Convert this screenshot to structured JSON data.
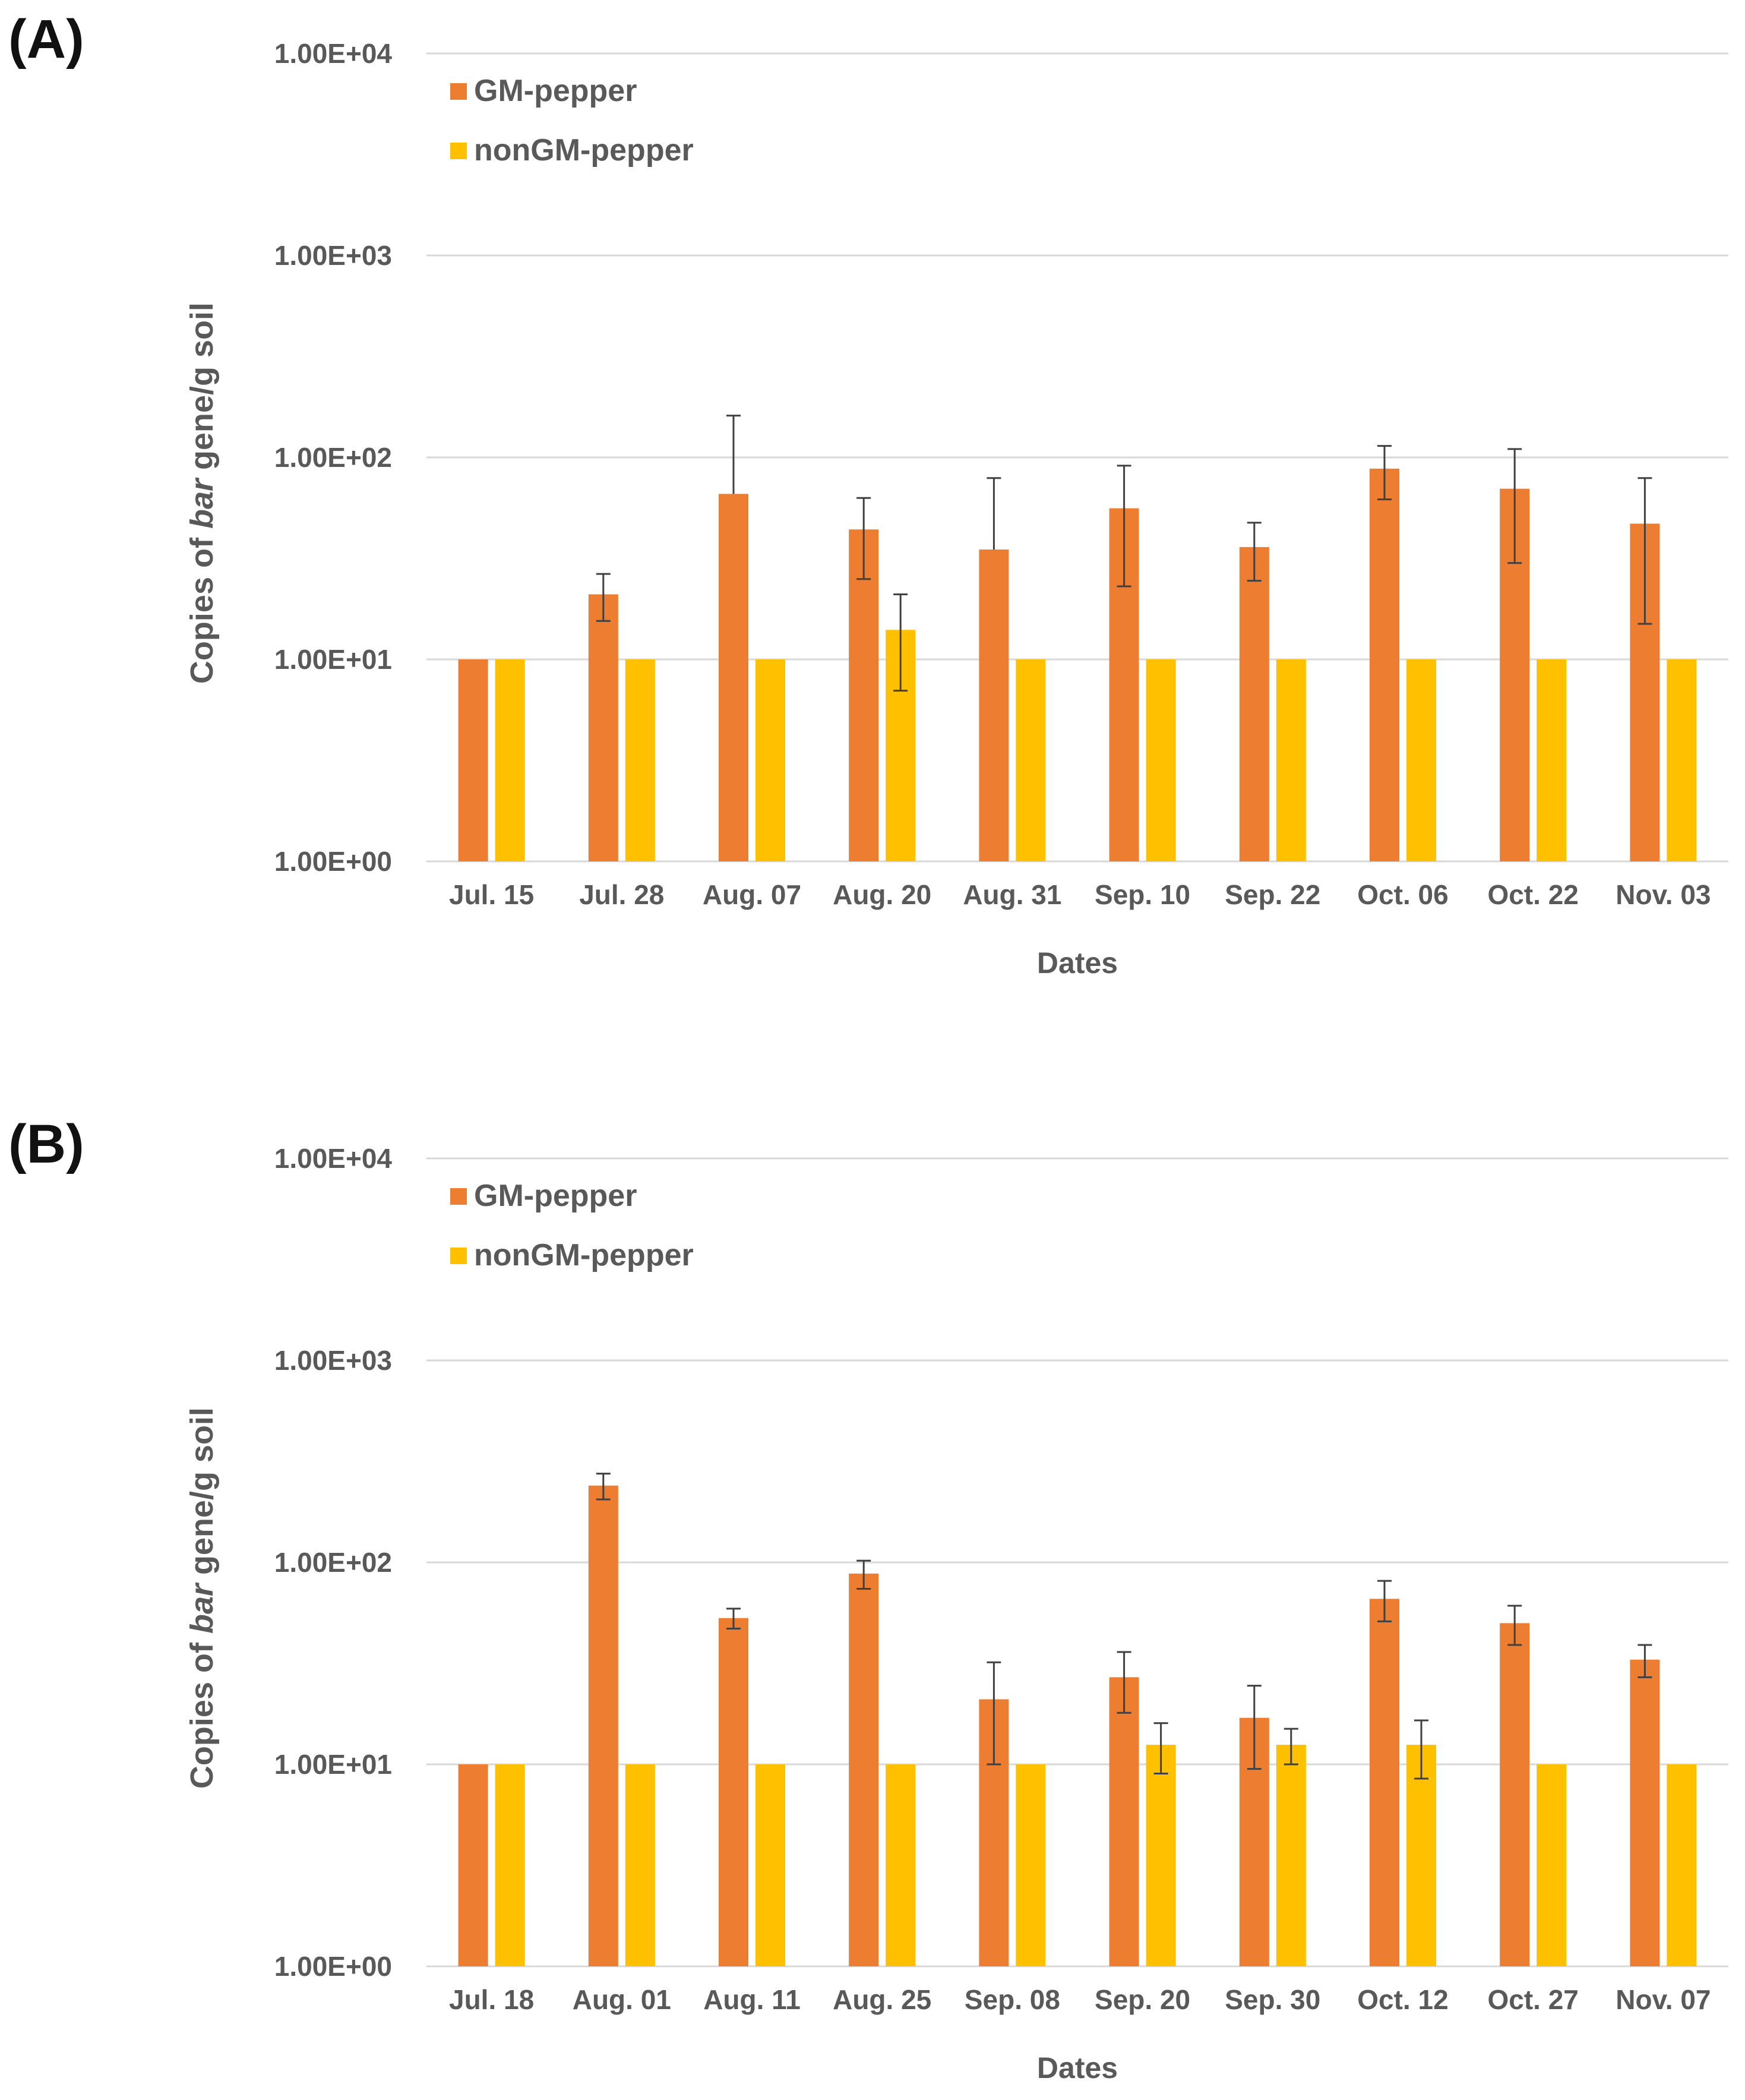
{
  "chart_data": [
    {
      "panel": "(A)",
      "type": "bar",
      "yscale": "log",
      "ylim": [
        1,
        10000
      ],
      "yticks": [
        "1.00E+00",
        "1.00E+01",
        "1.00E+02",
        "1.00E+03",
        "1.00E+04"
      ],
      "xlabel": "Dates",
      "ylabel": {
        "before": "Copies of ",
        "italic": "bar",
        "after": " gene/g soil"
      },
      "legend": [
        "GM-pepper",
        "nonGM-pepper"
      ],
      "legend_position": "top-left",
      "categories": [
        "Jul. 15",
        "Jul. 28",
        "Aug. 07",
        "Aug. 20",
        "Aug. 31",
        "Sep. 10",
        "Sep. 22",
        "Oct. 06",
        "Oct. 22",
        "Nov. 03"
      ],
      "series": [
        {
          "name": "GM-pepper",
          "color": "#ED7D31",
          "values": [
            10,
            21,
            66,
            44,
            35,
            56,
            36,
            88,
            70,
            47
          ],
          "err_low": [
            0,
            5.5,
            0,
            19,
            0,
            33,
            11.5,
            26,
            40,
            32
          ],
          "err_high": [
            0,
            5.5,
            95,
            19,
            44,
            35,
            11.5,
            26,
            40,
            32
          ]
        },
        {
          "name": "nonGM-pepper",
          "color": "#FFC000",
          "values": [
            10,
            10,
            10,
            14,
            10,
            10,
            10,
            10,
            10,
            10
          ],
          "err_low": [
            0,
            0,
            0,
            7,
            0,
            0,
            0,
            0,
            0,
            0
          ],
          "err_high": [
            0,
            0,
            0,
            7,
            0,
            0,
            0,
            0,
            0,
            0
          ]
        }
      ]
    },
    {
      "panel": "(B)",
      "type": "bar",
      "yscale": "log",
      "ylim": [
        1,
        10000
      ],
      "yticks": [
        "1.00E+00",
        "1.00E+01",
        "1.00E+02",
        "1.00E+03",
        "1.00E+04"
      ],
      "xlabel": "Dates",
      "ylabel": {
        "before": "Copies of ",
        "italic": "bar",
        "after": " gene/g soil"
      },
      "legend": [
        "GM-pepper",
        "nonGM-pepper"
      ],
      "legend_position": "top-left",
      "categories": [
        "Jul. 18",
        "Aug. 01",
        "Aug. 11",
        "Aug. 25",
        "Sep. 08",
        "Sep. 20",
        "Sep. 30",
        "Oct. 12",
        "Oct. 27",
        "Nov. 07"
      ],
      "series": [
        {
          "name": "GM-pepper",
          "color": "#ED7D31",
          "values": [
            10,
            240,
            53,
            88,
            21,
            27,
            17,
            66,
            50,
            33
          ],
          "err_low": [
            0,
            35,
            6,
            14,
            11,
            9,
            7.5,
            15,
            11,
            6
          ],
          "err_high": [
            0,
            35,
            6,
            14,
            11,
            9,
            7.5,
            15,
            11,
            6
          ]
        },
        {
          "name": "nonGM-pepper",
          "color": "#FFC000",
          "values": [
            10,
            10,
            10,
            10,
            10,
            12.5,
            12.5,
            12.5,
            10,
            10
          ],
          "err_low": [
            0,
            0,
            0,
            0,
            0,
            3.5,
            2.5,
            4,
            0,
            0
          ],
          "err_high": [
            0,
            0,
            0,
            0,
            0,
            3.5,
            2.5,
            4,
            0,
            0
          ]
        }
      ]
    }
  ]
}
